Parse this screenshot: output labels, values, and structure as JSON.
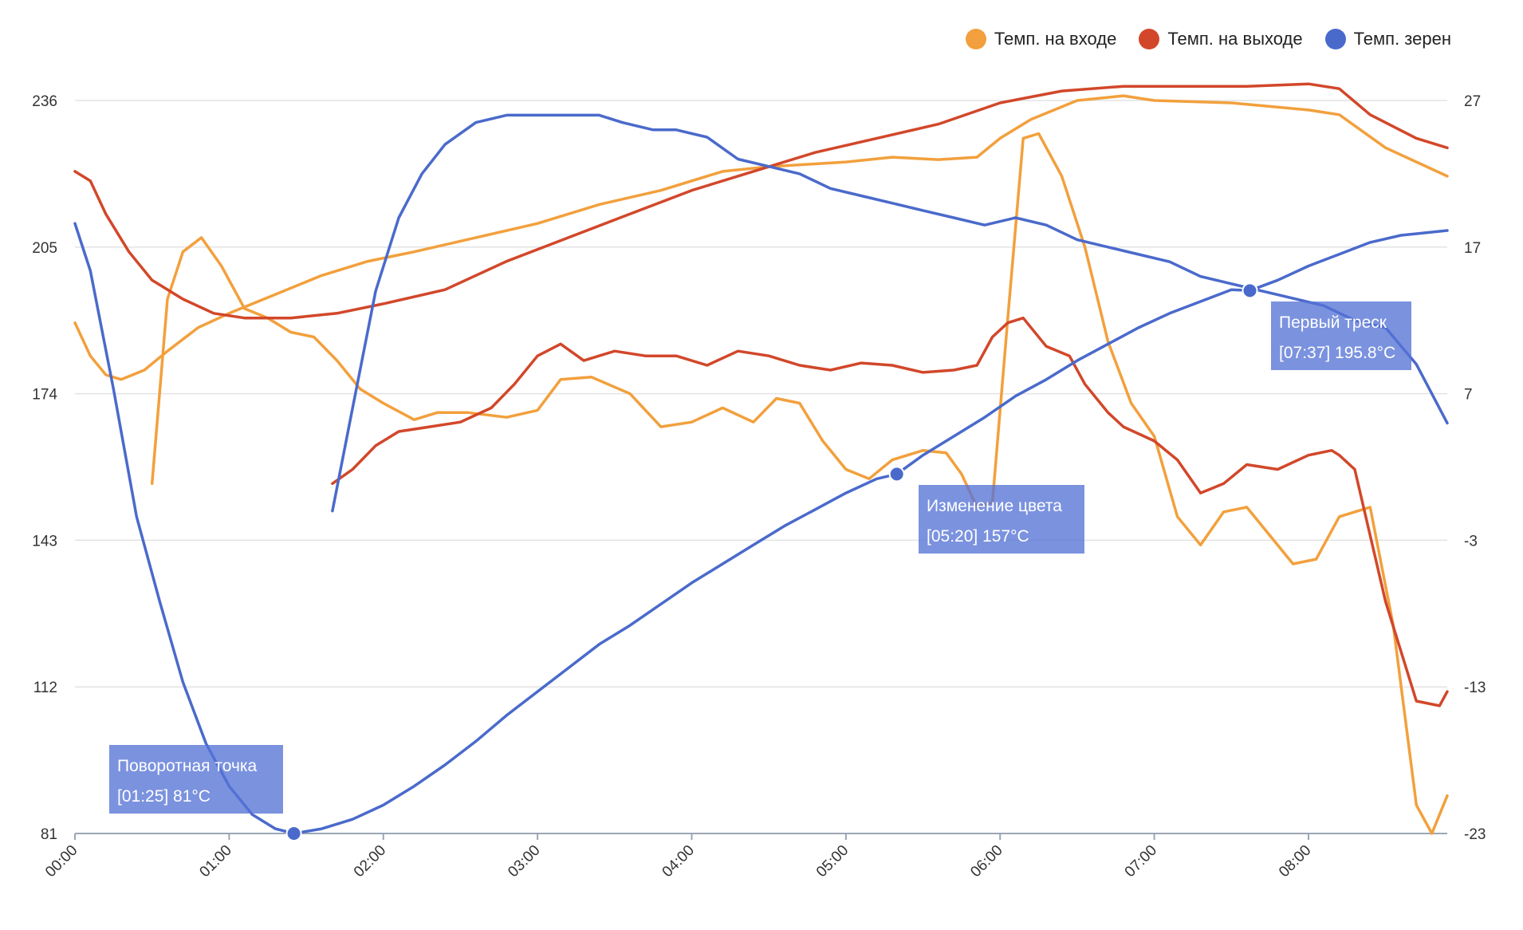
{
  "legend": {
    "inlet": "Темп. на входе",
    "exhaust": "Темп. на выходе",
    "bean": "Темп. зерен"
  },
  "colors": {
    "inlet": "#f2a03d",
    "exhaust": "#d2472a",
    "bean": "#4a6acb",
    "grid": "#e3e3e3",
    "axis": "#9aa6b5"
  },
  "annotations": [
    {
      "title": "Поворотная точка",
      "detail": "[01:25] 81°C"
    },
    {
      "title": "Изменение цвета",
      "detail": "[05:20] 157°C"
    },
    {
      "title": "Первый треск",
      "detail": "[07:37] 195.8°C"
    }
  ],
  "chart_data": {
    "type": "line",
    "x_unit": "minutes",
    "x_ticks": [
      "00:00",
      "01:00",
      "02:00",
      "03:00",
      "04:00",
      "05:00",
      "06:00",
      "07:00",
      "08:00"
    ],
    "x_range": [
      0,
      8.9
    ],
    "y_left_ticks": [
      "236",
      "205",
      "174",
      "143",
      "112",
      "81"
    ],
    "y_left_range": [
      81,
      236
    ],
    "y_right_ticks": [
      "27",
      "17",
      "7",
      "-3",
      "-13",
      "-23"
    ],
    "y_right_range": [
      -23,
      27
    ],
    "legend_position": "top-right",
    "grid": true,
    "series": [
      {
        "name": "Темп. на входе",
        "axis": "left",
        "color": "#f2a03d",
        "points": [
          [
            0.0,
            189
          ],
          [
            0.1,
            182
          ],
          [
            0.2,
            178
          ],
          [
            0.3,
            177
          ],
          [
            0.45,
            179
          ],
          [
            0.6,
            183
          ],
          [
            0.8,
            188
          ],
          [
            1.0,
            191
          ],
          [
            1.3,
            195
          ],
          [
            1.6,
            199
          ],
          [
            1.9,
            202
          ],
          [
            2.2,
            204
          ],
          [
            2.6,
            207
          ],
          [
            3.0,
            210
          ],
          [
            3.4,
            214
          ],
          [
            3.8,
            217
          ],
          [
            4.2,
            221
          ],
          [
            4.5,
            222
          ],
          [
            5.0,
            223
          ],
          [
            5.3,
            224
          ],
          [
            5.6,
            223.5
          ],
          [
            5.85,
            224
          ],
          [
            6.0,
            228
          ],
          [
            6.2,
            232
          ],
          [
            6.5,
            236
          ],
          [
            6.8,
            237
          ],
          [
            7.0,
            236
          ],
          [
            7.5,
            235.5
          ],
          [
            8.0,
            234
          ],
          [
            8.2,
            233
          ],
          [
            8.5,
            226
          ],
          [
            8.9,
            220
          ]
        ]
      },
      {
        "name": "Темп. на входе",
        "axis": "left",
        "color": "#f2a03d",
        "points": [
          [
            0.5,
            155
          ],
          [
            0.6,
            194
          ],
          [
            0.7,
            204
          ],
          [
            0.82,
            207
          ],
          [
            0.95,
            201
          ],
          [
            1.1,
            192
          ],
          [
            1.25,
            190
          ],
          [
            1.4,
            187
          ],
          [
            1.55,
            186
          ],
          [
            1.7,
            181
          ],
          [
            1.85,
            175
          ],
          [
            2.0,
            172
          ],
          [
            2.2,
            168.5
          ],
          [
            2.35,
            170
          ],
          [
            2.55,
            170
          ],
          [
            2.8,
            169
          ],
          [
            3.0,
            170.5
          ],
          [
            3.15,
            177
          ],
          [
            3.35,
            177.5
          ],
          [
            3.6,
            174
          ],
          [
            3.8,
            167
          ],
          [
            4.0,
            168
          ],
          [
            4.2,
            171
          ],
          [
            4.4,
            168
          ],
          [
            4.55,
            173
          ],
          [
            4.7,
            172
          ],
          [
            4.85,
            164
          ],
          [
            5.0,
            158
          ],
          [
            5.15,
            156
          ],
          [
            5.3,
            160
          ],
          [
            5.5,
            162
          ],
          [
            5.65,
            161.5
          ],
          [
            5.75,
            157
          ],
          [
            5.85,
            150
          ],
          [
            5.95,
            151
          ],
          [
            6.05,
            190
          ],
          [
            6.15,
            228
          ],
          [
            6.25,
            229
          ],
          [
            6.4,
            220
          ],
          [
            6.55,
            205
          ],
          [
            6.7,
            185
          ],
          [
            6.85,
            172
          ],
          [
            7.0,
            165
          ],
          [
            7.15,
            148
          ],
          [
            7.3,
            142
          ],
          [
            7.45,
            149
          ],
          [
            7.6,
            150
          ],
          [
            7.75,
            144
          ],
          [
            7.9,
            138
          ],
          [
            8.05,
            139
          ],
          [
            8.2,
            148
          ],
          [
            8.4,
            150
          ],
          [
            8.55,
            125
          ],
          [
            8.7,
            87
          ],
          [
            8.8,
            81
          ],
          [
            8.9,
            89
          ]
        ]
      },
      {
        "name": "Темп. на выходе",
        "axis": "left",
        "color": "#d2472a",
        "points": [
          [
            0.0,
            221
          ],
          [
            0.1,
            219
          ],
          [
            0.2,
            212
          ],
          [
            0.35,
            204
          ],
          [
            0.5,
            198
          ],
          [
            0.7,
            194
          ],
          [
            0.9,
            191
          ],
          [
            1.1,
            190
          ],
          [
            1.4,
            190
          ],
          [
            1.7,
            191
          ],
          [
            2.0,
            193
          ],
          [
            2.4,
            196
          ],
          [
            2.8,
            202
          ],
          [
            3.2,
            207
          ],
          [
            3.6,
            212
          ],
          [
            4.0,
            217
          ],
          [
            4.4,
            221
          ],
          [
            4.8,
            225
          ],
          [
            5.2,
            228
          ],
          [
            5.6,
            231
          ],
          [
            6.0,
            235.5
          ],
          [
            6.4,
            238
          ],
          [
            6.8,
            239
          ],
          [
            7.2,
            239
          ],
          [
            7.6,
            239
          ],
          [
            8.0,
            239.5
          ],
          [
            8.2,
            238.5
          ],
          [
            8.4,
            233
          ],
          [
            8.7,
            228
          ],
          [
            8.9,
            226
          ]
        ]
      },
      {
        "name": "Темп. на выходе",
        "axis": "left",
        "color": "#d2472a",
        "points": [
          [
            1.67,
            155
          ],
          [
            1.8,
            158
          ],
          [
            1.95,
            163
          ],
          [
            2.1,
            166
          ],
          [
            2.3,
            167
          ],
          [
            2.5,
            168
          ],
          [
            2.7,
            171
          ],
          [
            2.85,
            176
          ],
          [
            3.0,
            182
          ],
          [
            3.15,
            184.5
          ],
          [
            3.3,
            181
          ],
          [
            3.5,
            183
          ],
          [
            3.7,
            182
          ],
          [
            3.9,
            182
          ],
          [
            4.1,
            180
          ],
          [
            4.3,
            183
          ],
          [
            4.5,
            182
          ],
          [
            4.7,
            180
          ],
          [
            4.9,
            179
          ],
          [
            5.1,
            180.5
          ],
          [
            5.3,
            180
          ],
          [
            5.5,
            178.5
          ],
          [
            5.7,
            179
          ],
          [
            5.85,
            180
          ],
          [
            5.95,
            186
          ],
          [
            6.05,
            189
          ],
          [
            6.15,
            190
          ],
          [
            6.3,
            184
          ],
          [
            6.45,
            182
          ],
          [
            6.55,
            176
          ],
          [
            6.7,
            170
          ],
          [
            6.8,
            167
          ],
          [
            7.0,
            164
          ],
          [
            7.15,
            160
          ],
          [
            7.3,
            153
          ],
          [
            7.45,
            155
          ],
          [
            7.6,
            159
          ],
          [
            7.8,
            158
          ],
          [
            8.0,
            161
          ],
          [
            8.15,
            162
          ],
          [
            8.2,
            161
          ],
          [
            8.3,
            158
          ],
          [
            8.5,
            130
          ],
          [
            8.7,
            109
          ],
          [
            8.85,
            108
          ],
          [
            8.9,
            111
          ]
        ]
      },
      {
        "name": "Темп. зерен",
        "axis": "left",
        "color": "#4a6acb",
        "points": [
          [
            0.0,
            210
          ],
          [
            0.1,
            200
          ],
          [
            0.25,
            175
          ],
          [
            0.4,
            148
          ],
          [
            0.55,
            130
          ],
          [
            0.7,
            113
          ],
          [
            0.85,
            100
          ],
          [
            1.0,
            91
          ],
          [
            1.15,
            85
          ],
          [
            1.3,
            82
          ],
          [
            1.42,
            81
          ]
        ]
      },
      {
        "name": "Темп. зерен",
        "axis": "left",
        "color": "#4a6acb",
        "points": [
          [
            1.42,
            81
          ],
          [
            1.6,
            82
          ],
          [
            1.8,
            84
          ],
          [
            2.0,
            87
          ],
          [
            2.2,
            91
          ],
          [
            2.4,
            95.5
          ],
          [
            2.6,
            100.5
          ],
          [
            2.8,
            106
          ],
          [
            3.0,
            111
          ],
          [
            3.2,
            116
          ],
          [
            3.4,
            121
          ],
          [
            3.6,
            125
          ],
          [
            3.8,
            129.5
          ],
          [
            4.0,
            134
          ],
          [
            4.2,
            138
          ],
          [
            4.4,
            142
          ],
          [
            4.6,
            146
          ],
          [
            4.8,
            149.5
          ],
          [
            5.0,
            153
          ],
          [
            5.2,
            156
          ],
          [
            5.33,
            157
          ],
          [
            5.5,
            161
          ],
          [
            5.7,
            165
          ],
          [
            5.9,
            169
          ],
          [
            6.1,
            173.5
          ],
          [
            6.3,
            177
          ],
          [
            6.5,
            181
          ],
          [
            6.7,
            184.5
          ],
          [
            6.9,
            188
          ],
          [
            7.1,
            191
          ],
          [
            7.3,
            193.5
          ],
          [
            7.5,
            196
          ],
          [
            7.62,
            195.8
          ],
          [
            7.8,
            198
          ],
          [
            8.0,
            201
          ],
          [
            8.2,
            203.5
          ],
          [
            8.4,
            206
          ],
          [
            8.6,
            207.5
          ],
          [
            8.9,
            208.5
          ]
        ]
      },
      {
        "name": "Темп. зерен",
        "axis": "right",
        "color": "#4a6acb",
        "points": [
          [
            1.67,
            -1
          ],
          [
            1.8,
            6
          ],
          [
            1.95,
            14
          ],
          [
            2.1,
            19
          ],
          [
            2.25,
            22
          ],
          [
            2.4,
            24
          ],
          [
            2.6,
            25.5
          ],
          [
            2.8,
            26
          ],
          [
            3.0,
            26
          ],
          [
            3.2,
            26
          ],
          [
            3.4,
            26
          ],
          [
            3.55,
            25.5
          ],
          [
            3.75,
            25
          ],
          [
            3.9,
            25
          ],
          [
            4.1,
            24.5
          ],
          [
            4.3,
            23
          ],
          [
            4.5,
            22.5
          ],
          [
            4.7,
            22
          ],
          [
            4.9,
            21
          ],
          [
            5.1,
            20.5
          ],
          [
            5.3,
            20
          ],
          [
            5.5,
            19.5
          ],
          [
            5.7,
            19
          ],
          [
            5.9,
            18.5
          ],
          [
            6.1,
            19
          ],
          [
            6.3,
            18.5
          ],
          [
            6.5,
            17.5
          ],
          [
            6.7,
            17
          ],
          [
            6.9,
            16.5
          ],
          [
            7.1,
            16
          ],
          [
            7.3,
            15
          ],
          [
            7.5,
            14.5
          ],
          [
            7.7,
            14
          ],
          [
            7.9,
            13.5
          ],
          [
            8.1,
            13
          ],
          [
            8.3,
            12
          ],
          [
            8.5,
            11.5
          ],
          [
            8.7,
            9
          ],
          [
            8.9,
            5
          ]
        ]
      }
    ],
    "markers": [
      {
        "x": 1.42,
        "y": 81,
        "label_index": 0
      },
      {
        "x": 5.33,
        "y": 157,
        "label_index": 1
      },
      {
        "x": 7.62,
        "y": 195.8,
        "label_index": 2
      }
    ]
  }
}
